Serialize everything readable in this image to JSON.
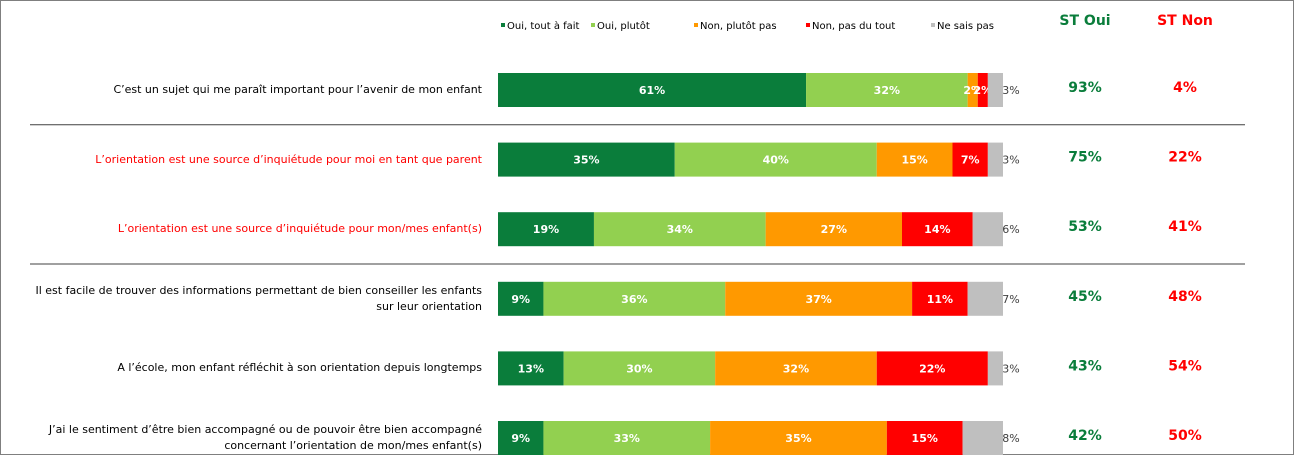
{
  "chart_data": {
    "type": "bar",
    "orientation": "horizontal",
    "stacked": true,
    "categories": [
      "C’est un sujet qui me paraît important pour l’avenir de mon enfant",
      "L’orientation est une source d’inquiétude pour moi en tant que parent",
      "L’orientation est une source d’inquiétude pour mon/mes enfant(s)",
      "Il est facile de trouver des informations permettant de bien conseiller les enfants sur leur orientation",
      "A l’école, mon enfant réfléchit à son orientation depuis longtemps",
      "J’ai le sentiment d’être bien accompagné ou de pouvoir être bien accompagné concernant l’orientation de mon/mes enfant(s)"
    ],
    "category_colors": [
      "#000000",
      "#ff0000",
      "#ff0000",
      "#000000",
      "#000000",
      "#000000"
    ],
    "separators_after": [
      0,
      2
    ],
    "series": [
      {
        "name": "Oui, tout à fait",
        "color": "#0a7d3b",
        "label_color": "#ffffff",
        "values": [
          61,
          35,
          19,
          9,
          13,
          9
        ],
        "value_labels": [
          "61%",
          "35%",
          "19%",
          "9%",
          "13%",
          "9%"
        ]
      },
      {
        "name": "Oui, plutôt",
        "color": "#92d050",
        "label_color": "#ffffff",
        "values": [
          32,
          40,
          34,
          36,
          30,
          33
        ],
        "value_labels": [
          "32%",
          "40%",
          "34%",
          "36%",
          "30%",
          "33%"
        ]
      },
      {
        "name": "Non, plutôt pas",
        "color": "#ff9900",
        "label_color": "#ffffff",
        "values": [
          2,
          15,
          27,
          37,
          32,
          35
        ],
        "value_labels": [
          "2%",
          "15%",
          "27%",
          "37%",
          "32%",
          "35%"
        ]
      },
      {
        "name": "Non, pas du tout",
        "color": "#ff0000",
        "label_color": "#ffffff",
        "values": [
          2,
          7,
          14,
          11,
          22,
          15
        ],
        "value_labels": [
          "2%",
          "7%",
          "14%",
          "11%",
          "22%",
          "15%"
        ]
      },
      {
        "name": "Ne sais pas",
        "color": "#bfbfbf",
        "label_color": "#404040",
        "values": [
          3,
          3,
          6,
          7,
          3,
          8
        ],
        "value_labels": [
          "3%",
          "3%",
          "6%",
          "7%",
          "3%",
          "8%"
        ]
      }
    ],
    "totals": [
      {
        "name": "ST Oui",
        "color": "#0a7d3b",
        "values": [
          93,
          75,
          53,
          45,
          43,
          42
        ],
        "value_labels": [
          "93%",
          "75%",
          "53%",
          "45%",
          "43%",
          "42%"
        ]
      },
      {
        "name": "ST Non",
        "color": "#ff0000",
        "values": [
          4,
          22,
          41,
          48,
          54,
          50
        ],
        "value_labels": [
          "4%",
          "22%",
          "41%",
          "48%",
          "54%",
          "50%"
        ]
      }
    ]
  }
}
